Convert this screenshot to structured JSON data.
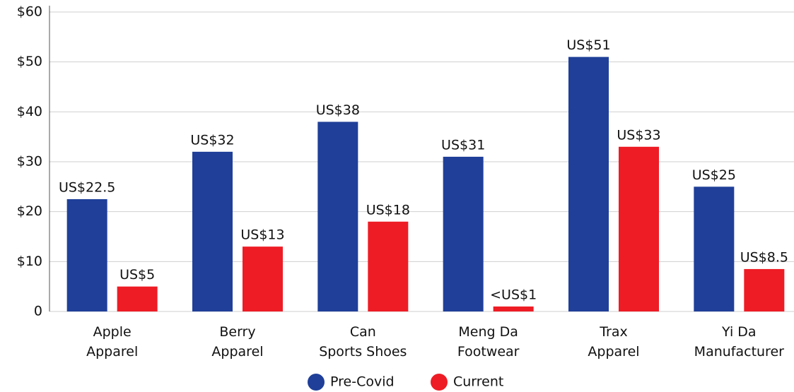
{
  "chart_data": {
    "type": "bar",
    "categories": [
      "Apple\nApparel",
      "Berry\nApparel",
      "Can\nSports Shoes",
      "Meng Da\nFootwear",
      "Trax\nApparel",
      "Yi Da\nManufacturer"
    ],
    "series": [
      {
        "name": "Pre-Covid",
        "color": "#1f3f99",
        "values": [
          22.5,
          32,
          38,
          31,
          51,
          25
        ],
        "value_labels": [
          "US$22.5",
          "US$32",
          "US$38",
          "US$31",
          "US$51",
          "US$25"
        ]
      },
      {
        "name": "Current",
        "color": "#ee1c25",
        "values": [
          5,
          13,
          18,
          1,
          33,
          8.5
        ],
        "value_labels": [
          "US$5",
          "US$13",
          "US$18",
          "<US$1",
          "US$33",
          "US$8.5"
        ]
      }
    ],
    "ylim": [
      0,
      60
    ],
    "yticks": [
      0,
      {
        "value": 10,
        "label": "$10"
      },
      {
        "value": 20,
        "label": "$20"
      },
      {
        "value": 30,
        "label": "$30"
      },
      {
        "value": 40,
        "label": "$40"
      },
      {
        "value": 50,
        "label": "$50"
      },
      {
        "value": 60,
        "label": "$60"
      }
    ],
    "grid": true,
    "legend": "bottom"
  }
}
